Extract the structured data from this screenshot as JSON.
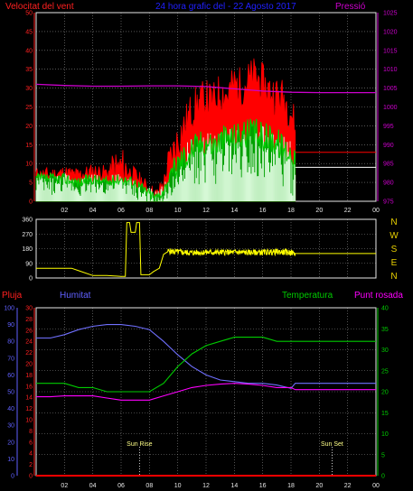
{
  "header": {
    "left_title": "Velocitat del vent",
    "center_title": "24 hora grafic del - 22 Agosto 2017",
    "right_title": "Pressió"
  },
  "colors": {
    "background": "#000000",
    "axis": "#e8e8e8",
    "grid": "#8a8a8a",
    "wind_gust": "#ff0000",
    "wind_avg": "#00cc00",
    "wind_fill": "#e8ffe8",
    "pressure": "#cc00cc",
    "direction": "#ffff00",
    "rain": "#ff0000",
    "humidity": "#7070ff",
    "temperature": "#00cc00",
    "dewpoint": "#ff00ff",
    "compass": "#e8d000",
    "left_axis_red": "#ff2020",
    "left_axis_blue": "#6060ff",
    "right_axis_green": "#00cc00",
    "sun_label": "#ffff88"
  },
  "chart_data": [
    {
      "type": "line",
      "title": "Velocitat del vent / Pressió",
      "x_ticks": [
        "02",
        "04",
        "06",
        "08",
        "10",
        "12",
        "14",
        "16",
        "18",
        "20",
        "22",
        "00"
      ],
      "y_left_ticks": [
        "0",
        "5",
        "10",
        "15",
        "20",
        "25",
        "30",
        "35",
        "40",
        "45",
        "50"
      ],
      "y_left_range": [
        0,
        50
      ],
      "y_right_ticks": [
        "975",
        "980",
        "985",
        "990",
        "995",
        "1000",
        "1005",
        "1010",
        "1015",
        "1020",
        "1025"
      ],
      "y_right_range": [
        975,
        1025
      ],
      "x_range_hours": [
        0,
        24
      ],
      "series": [
        {
          "name": "Velocitat del vent",
          "role": "gust",
          "points": [
            [
              0,
              7
            ],
            [
              1,
              7
            ],
            [
              2,
              7.5
            ],
            [
              3,
              7
            ],
            [
              4,
              8
            ],
            [
              5,
              7.5
            ],
            [
              6,
              9
            ],
            [
              7,
              7
            ],
            [
              8,
              3
            ],
            [
              8.5,
              1.5
            ],
            [
              9,
              5
            ],
            [
              9.5,
              11
            ],
            [
              10,
              16
            ],
            [
              10.5,
              20
            ],
            [
              11,
              24
            ],
            [
              11.5,
              26
            ],
            [
              12,
              27
            ],
            [
              12.5,
              26
            ],
            [
              13,
              29
            ],
            [
              13.5,
              28
            ],
            [
              14,
              31
            ],
            [
              14.5,
              30
            ],
            [
              15,
              32
            ],
            [
              15.5,
              33
            ],
            [
              16,
              31
            ],
            [
              16.5,
              29
            ],
            [
              17,
              28
            ],
            [
              17.5,
              27
            ],
            [
              18,
              24
            ],
            [
              18.3,
              19
            ]
          ]
        },
        {
          "role": "average",
          "points": [
            [
              0,
              6
            ],
            [
              1,
              6
            ],
            [
              2,
              6
            ],
            [
              3,
              5
            ],
            [
              4,
              6
            ],
            [
              5,
              5
            ],
            [
              6,
              6
            ],
            [
              7,
              5
            ],
            [
              8,
              2
            ],
            [
              8.5,
              1
            ],
            [
              9,
              3
            ],
            [
              9.5,
              7
            ],
            [
              10,
              10
            ],
            [
              10.5,
              12
            ],
            [
              11,
              14
            ],
            [
              11.5,
              15
            ],
            [
              12,
              16
            ],
            [
              12.5,
              15
            ],
            [
              13,
              16
            ],
            [
              13.5,
              17
            ],
            [
              14,
              17
            ],
            [
              14.5,
              18
            ],
            [
              15,
              18
            ],
            [
              15.5,
              18
            ],
            [
              16,
              17
            ],
            [
              16.5,
              17
            ],
            [
              17,
              16
            ],
            [
              17.5,
              14
            ],
            [
              18,
              13
            ],
            [
              18.3,
              13
            ]
          ]
        },
        {
          "role": "gust_fill_top",
          "points": [
            [
              0,
              5
            ],
            [
              1,
              4
            ],
            [
              2,
              5
            ],
            [
              3,
              4
            ],
            [
              4,
              5
            ],
            [
              5,
              4
            ],
            [
              6,
              5
            ],
            [
              7,
              3
            ],
            [
              8,
              1
            ],
            [
              8.5,
              0
            ],
            [
              9,
              2
            ],
            [
              9.5,
              4
            ],
            [
              10,
              6
            ],
            [
              10.5,
              8
            ],
            [
              11,
              10
            ],
            [
              11.5,
              11
            ],
            [
              12,
              12
            ],
            [
              12.5,
              11
            ],
            [
              13,
              13
            ],
            [
              13.5,
              12
            ],
            [
              14,
              14
            ],
            [
              14.5,
              13
            ],
            [
              15,
              14
            ],
            [
              15.5,
              14
            ],
            [
              16,
              13
            ],
            [
              16.5,
              12
            ],
            [
              17,
              12
            ],
            [
              17.5,
              10
            ],
            [
              18,
              9
            ],
            [
              18.3,
              7
            ]
          ]
        },
        {
          "name": "Pressió",
          "role": "pressure",
          "points": [
            [
              0,
              1006
            ],
            [
              2,
              1005.7
            ],
            [
              4,
              1005.5
            ],
            [
              6,
              1005.5
            ],
            [
              8,
              1005.6
            ],
            [
              10,
              1005.6
            ],
            [
              12,
              1005.4
            ],
            [
              14,
              1004.8
            ],
            [
              16,
              1004.2
            ],
            [
              18,
              1003.9
            ],
            [
              20,
              1003.8
            ],
            [
              22,
              1003.8
            ],
            [
              24,
              1003.8
            ]
          ]
        },
        {
          "role": "wind_after",
          "points": [
            [
              18.3,
              13
            ],
            [
              24,
              13
            ]
          ]
        },
        {
          "role": "avg_after",
          "points": [
            [
              18.3,
              9
            ],
            [
              24,
              9
            ]
          ]
        }
      ]
    },
    {
      "type": "line",
      "title": "Direcció del vent",
      "x_range_hours": [
        0,
        24
      ],
      "y_left_ticks": [
        "0",
        "90",
        "180",
        "270",
        "360"
      ],
      "y_range": [
        0,
        360
      ],
      "compass_labels": [
        "N",
        "W",
        "S",
        "E",
        "N"
      ],
      "series": [
        {
          "role": "direction",
          "points": [
            [
              0,
              60
            ],
            [
              2.5,
              60
            ],
            [
              3,
              45
            ],
            [
              4,
              15
            ],
            [
              5,
              15
            ],
            [
              6,
              10
            ],
            [
              6.3,
              10
            ],
            [
              6.4,
              340
            ],
            [
              6.6,
              340
            ],
            [
              6.7,
              280
            ],
            [
              7,
              280
            ],
            [
              7.1,
              340
            ],
            [
              7.3,
              340
            ],
            [
              7.4,
              20
            ],
            [
              8,
              20
            ],
            [
              8.3,
              40
            ],
            [
              8.7,
              60
            ],
            [
              9,
              145
            ],
            [
              9.3,
              165
            ],
            [
              10,
              160
            ],
            [
              11,
              155
            ],
            [
              12,
              158
            ],
            [
              13,
              157
            ],
            [
              14,
              158
            ],
            [
              15,
              156
            ],
            [
              16,
              158
            ],
            [
              17,
              160
            ],
            [
              18,
              157
            ],
            [
              18.3,
              150
            ],
            [
              24,
              150
            ]
          ]
        }
      ]
    },
    {
      "type": "line",
      "title": "Pluja / Humitat / Temperatura / Punt rosada",
      "x_ticks": [
        "02",
        "04",
        "06",
        "08",
        "10",
        "12",
        "14",
        "16",
        "18",
        "20",
        "22",
        "00"
      ],
      "x_range_hours": [
        0,
        24
      ],
      "legend": [
        "Pluja",
        "Humitat",
        "Temperatura",
        "Punt rosada"
      ],
      "y_left_outer_ticks": [
        "0",
        "10",
        "20",
        "30",
        "40",
        "50",
        "60",
        "70",
        "80",
        "90",
        "100"
      ],
      "y_left_outer_range": [
        0,
        100
      ],
      "y_left_inner_ticks": [
        "0",
        "2",
        "4",
        "6",
        "8",
        "10",
        "12",
        "14",
        "16",
        "18",
        "20",
        "22",
        "24",
        "26",
        "28",
        "30"
      ],
      "y_left_inner_range": [
        0,
        30
      ],
      "y_right_ticks": [
        "0",
        "5",
        "10",
        "15",
        "20",
        "25",
        "30",
        "35",
        "40"
      ],
      "y_right_range": [
        0,
        40
      ],
      "annotations": [
        {
          "text": "Sun Rise",
          "x_hour": 7.3
        },
        {
          "text": "Sun Set",
          "x_hour": 20.9
        }
      ],
      "series": [
        {
          "name": "Pluja",
          "role": "rain",
          "points": [
            [
              0,
              0
            ],
            [
              24,
              0
            ]
          ]
        },
        {
          "name": "Humitat",
          "role": "humidity",
          "points": [
            [
              0,
              82
            ],
            [
              1,
              82
            ],
            [
              2,
              84
            ],
            [
              3,
              87
            ],
            [
              4,
              89
            ],
            [
              5,
              90
            ],
            [
              6,
              90
            ],
            [
              7,
              89
            ],
            [
              8,
              87
            ],
            [
              9,
              80
            ],
            [
              10,
              72
            ],
            [
              11,
              65
            ],
            [
              12,
              60
            ],
            [
              13,
              57
            ],
            [
              14,
              56
            ],
            [
              15,
              55
            ],
            [
              16,
              55
            ],
            [
              17,
              54
            ],
            [
              18,
              52
            ],
            [
              18.3,
              55
            ],
            [
              24,
              55
            ]
          ]
        },
        {
          "name": "Temperatura",
          "role": "temperature",
          "points": [
            [
              0,
              22
            ],
            [
              1,
              22
            ],
            [
              2,
              22
            ],
            [
              3,
              21
            ],
            [
              4,
              21
            ],
            [
              5,
              20
            ],
            [
              6,
              20
            ],
            [
              7,
              20
            ],
            [
              8,
              20
            ],
            [
              9,
              22
            ],
            [
              10,
              26
            ],
            [
              11,
              29
            ],
            [
              12,
              31
            ],
            [
              13,
              32
            ],
            [
              14,
              33
            ],
            [
              15,
              33
            ],
            [
              16,
              33
            ],
            [
              17,
              32
            ],
            [
              18,
              32
            ],
            [
              18.3,
              32
            ],
            [
              24,
              32
            ]
          ]
        },
        {
          "name": "Punt rosada",
          "role": "dewpoint",
          "points": [
            [
              0,
              18.8
            ],
            [
              1,
              18.8
            ],
            [
              2,
              19
            ],
            [
              3,
              19
            ],
            [
              4,
              19
            ],
            [
              5,
              18.5
            ],
            [
              6,
              18
            ],
            [
              7,
              18
            ],
            [
              8,
              18
            ],
            [
              9,
              19
            ],
            [
              10,
              20
            ],
            [
              11,
              21
            ],
            [
              12,
              21.5
            ],
            [
              13,
              21.8
            ],
            [
              14,
              22
            ],
            [
              15,
              21.8
            ],
            [
              16,
              21.5
            ],
            [
              17,
              21
            ],
            [
              18,
              21
            ],
            [
              18.3,
              20.5
            ],
            [
              24,
              20.5
            ]
          ]
        }
      ]
    }
  ]
}
